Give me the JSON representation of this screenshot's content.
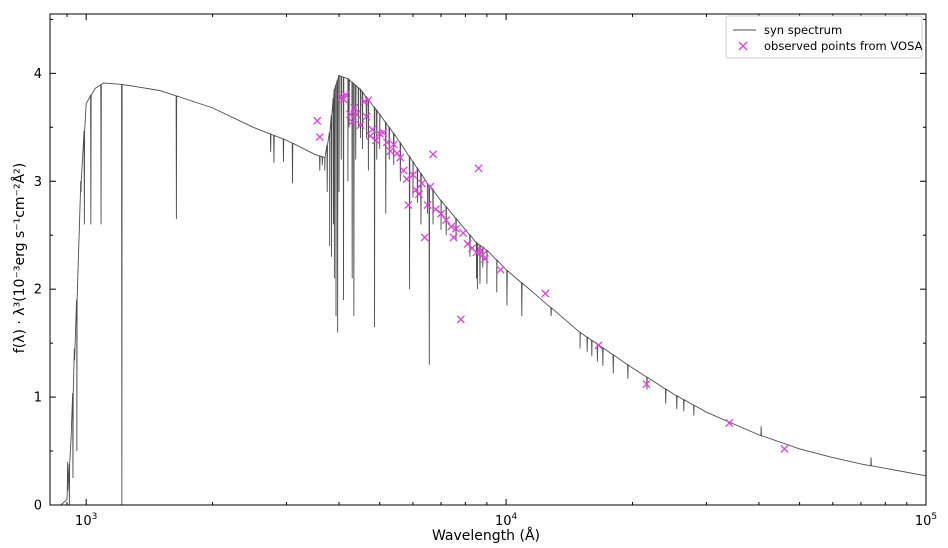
{
  "chart_data": {
    "type": "line",
    "xlabel": "Wavelength (Å)",
    "ylabel": "f(λ) · λ³(10⁻³erg s⁻¹cm⁻²Å²)",
    "xscale": "log",
    "xlim": [
      820,
      100000
    ],
    "ylim": [
      0,
      4.55
    ],
    "x_ticks": [
      {
        "value": 1000,
        "base": "10",
        "exp": "3"
      },
      {
        "value": 10000,
        "base": "10",
        "exp": "4"
      },
      {
        "value": 100000,
        "base": "10",
        "exp": "5"
      }
    ],
    "y_ticks": [
      0,
      1,
      2,
      3,
      4
    ],
    "legend_position": "top-right",
    "grid": false,
    "series": [
      {
        "name": "syn spectrum",
        "kind": "line",
        "color": "#4d4d4d",
        "continuum": [
          [
            870,
            0
          ],
          [
            900,
            0.05
          ],
          [
            920,
            0.6
          ],
          [
            950,
            1.9
          ],
          [
            970,
            2.95
          ],
          [
            1000,
            3.72
          ],
          [
            1050,
            3.86
          ],
          [
            1100,
            3.91
          ],
          [
            1200,
            3.9
          ],
          [
            1300,
            3.88
          ],
          [
            1500,
            3.84
          ],
          [
            2000,
            3.68
          ],
          [
            2500,
            3.5
          ],
          [
            3000,
            3.38
          ],
          [
            3500,
            3.25
          ],
          [
            3700,
            3.22
          ],
          [
            3800,
            3.45
          ],
          [
            3900,
            3.85
          ],
          [
            4000,
            3.98
          ],
          [
            4200,
            3.95
          ],
          [
            4500,
            3.85
          ],
          [
            5000,
            3.62
          ],
          [
            5500,
            3.4
          ],
          [
            6000,
            3.18
          ],
          [
            6500,
            2.98
          ],
          [
            7000,
            2.82
          ],
          [
            7500,
            2.68
          ],
          [
            8000,
            2.55
          ],
          [
            8500,
            2.43
          ],
          [
            9000,
            2.36
          ],
          [
            9500,
            2.27
          ],
          [
            10000,
            2.18
          ],
          [
            12000,
            1.92
          ],
          [
            15000,
            1.6
          ],
          [
            20000,
            1.27
          ],
          [
            25000,
            1.03
          ],
          [
            30000,
            0.86
          ],
          [
            40000,
            0.65
          ],
          [
            50000,
            0.52
          ],
          [
            60000,
            0.44
          ],
          [
            70000,
            0.38
          ],
          [
            80000,
            0.34
          ],
          [
            100000,
            0.27
          ]
        ],
        "absorption_lines": [
          [
            903,
            0.4
          ],
          [
            912,
            0.0
          ],
          [
            930,
            0.25
          ],
          [
            937,
            1.45
          ],
          [
            950,
            0.5
          ],
          [
            972,
            2.9
          ],
          [
            990,
            2.6
          ],
          [
            1026,
            2.6
          ],
          [
            1085,
            2.6
          ],
          [
            1216,
            0.0
          ],
          [
            1640,
            2.65
          ],
          [
            2750,
            3.27
          ],
          [
            2800,
            3.17
          ],
          [
            2950,
            3.18
          ],
          [
            3100,
            2.98
          ],
          [
            3600,
            3.1
          ],
          [
            3650,
            3.15
          ],
          [
            3700,
            3.1
          ],
          [
            3750,
            2.9
          ],
          [
            3800,
            2.4
          ],
          [
            3840,
            2.3
          ],
          [
            3880,
            2.6
          ],
          [
            3900,
            2.1
          ],
          [
            3935,
            1.75
          ],
          [
            3970,
            1.6
          ],
          [
            4000,
            2.9
          ],
          [
            4050,
            3.2
          ],
          [
            4100,
            1.9
          ],
          [
            4200,
            3.0
          ],
          [
            4227,
            3.5
          ],
          [
            4300,
            2.1
          ],
          [
            4340,
            1.75
          ],
          [
            4385,
            3.2
          ],
          [
            4450,
            3.5
          ],
          [
            4500,
            3.4
          ],
          [
            4550,
            3.3
          ],
          [
            4650,
            3.4
          ],
          [
            4700,
            3.1
          ],
          [
            4861,
            1.65
          ],
          [
            4920,
            3.2
          ],
          [
            5000,
            3.3
          ],
          [
            5170,
            2.7
          ],
          [
            5270,
            3.2
          ],
          [
            5400,
            3.15
          ],
          [
            5600,
            3.0
          ],
          [
            5890,
            2.0
          ],
          [
            6000,
            2.85
          ],
          [
            6150,
            2.8
          ],
          [
            6270,
            2.6
          ],
          [
            6500,
            2.7
          ],
          [
            6563,
            1.3
          ],
          [
            6700,
            2.6
          ],
          [
            7000,
            2.55
          ],
          [
            7200,
            2.5
          ],
          [
            7600,
            2.45
          ],
          [
            8200,
            2.3
          ],
          [
            8500,
            2.1
          ],
          [
            8545,
            2.0
          ],
          [
            8665,
            2.05
          ],
          [
            8800,
            2.2
          ],
          [
            9000,
            2.05
          ],
          [
            9500,
            1.97
          ],
          [
            10050,
            1.85
          ],
          [
            10900,
            1.75
          ],
          [
            12800,
            1.75
          ],
          [
            15000,
            1.45
          ],
          [
            15600,
            1.42
          ],
          [
            16000,
            1.38
          ],
          [
            16500,
            1.33
          ],
          [
            17000,
            1.29
          ],
          [
            18000,
            1.22
          ],
          [
            19500,
            1.17
          ],
          [
            21650,
            1.07
          ],
          [
            24000,
            0.94
          ],
          [
            25500,
            0.89
          ],
          [
            26500,
            0.87
          ],
          [
            28000,
            0.83
          ],
          [
            40500,
            0.73
          ],
          [
            74000,
            0.44
          ]
        ]
      },
      {
        "name": "observed points from VOSA",
        "kind": "scatter",
        "color": "#e040e0",
        "marker": "x",
        "points": [
          [
            3550,
            3.56
          ],
          [
            3600,
            3.41
          ],
          [
            4050,
            3.78
          ],
          [
            4100,
            3.76
          ],
          [
            4150,
            3.8
          ],
          [
            4250,
            3.62
          ],
          [
            4300,
            3.55
          ],
          [
            4350,
            3.68
          ],
          [
            4400,
            3.62
          ],
          [
            4500,
            3.52
          ],
          [
            4600,
            3.74
          ],
          [
            4650,
            3.6
          ],
          [
            4700,
            3.75
          ],
          [
            4750,
            3.42
          ],
          [
            4800,
            3.48
          ],
          [
            4900,
            3.38
          ],
          [
            5000,
            3.44
          ],
          [
            5100,
            3.45
          ],
          [
            5200,
            3.36
          ],
          [
            5300,
            3.28
          ],
          [
            5400,
            3.34
          ],
          [
            5500,
            3.26
          ],
          [
            5600,
            3.22
          ],
          [
            5700,
            3.1
          ],
          [
            5800,
            3.02
          ],
          [
            5850,
            2.78
          ],
          [
            6000,
            3.06
          ],
          [
            6100,
            2.92
          ],
          [
            6200,
            2.88
          ],
          [
            6300,
            2.98
          ],
          [
            6400,
            2.48
          ],
          [
            6500,
            2.78
          ],
          [
            6600,
            2.95
          ],
          [
            6700,
            3.25
          ],
          [
            6800,
            2.74
          ],
          [
            7000,
            2.7
          ],
          [
            7200,
            2.64
          ],
          [
            7400,
            2.58
          ],
          [
            7500,
            2.48
          ],
          [
            7600,
            2.56
          ],
          [
            7800,
            1.72
          ],
          [
            7900,
            2.52
          ],
          [
            8100,
            2.42
          ],
          [
            8300,
            2.38
          ],
          [
            8500,
            2.34
          ],
          [
            8600,
            3.12
          ],
          [
            8700,
            2.36
          ],
          [
            8800,
            2.32
          ],
          [
            8900,
            2.28
          ],
          [
            9700,
            2.18
          ],
          [
            12400,
            1.96
          ],
          [
            16600,
            1.48
          ],
          [
            21600,
            1.12
          ],
          [
            34000,
            0.76
          ],
          [
            46000,
            0.52
          ]
        ]
      }
    ]
  }
}
